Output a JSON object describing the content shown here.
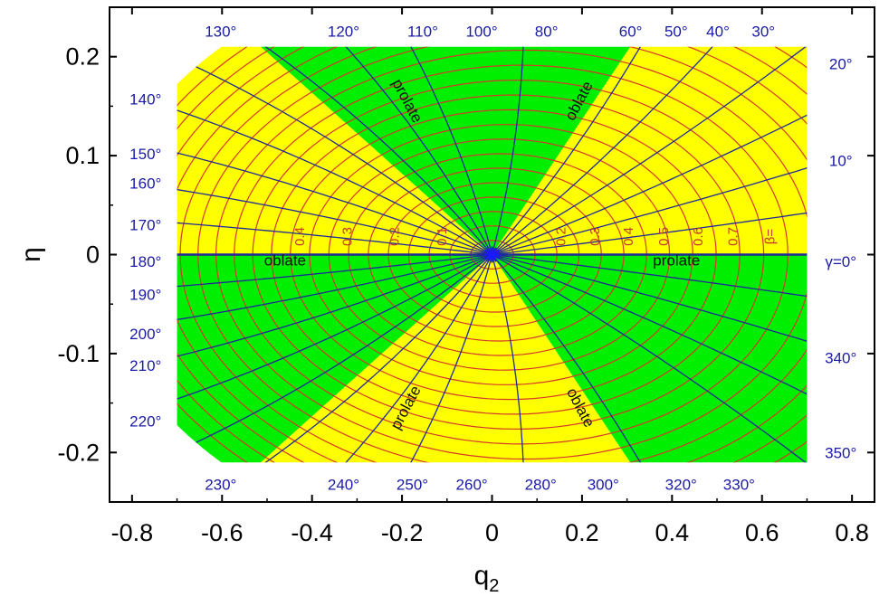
{
  "chart_data": {
    "type": "contour",
    "xlabel": "q",
    "xlabel_sub": "2",
    "ylabel": "η",
    "xlim": [
      -0.85,
      0.85
    ],
    "ylim": [
      -0.25,
      0.25
    ],
    "xticks": [
      -0.8,
      -0.6,
      -0.4,
      -0.2,
      0,
      0.2,
      0.4,
      0.6,
      0.8
    ],
    "xtick_labels": [
      "-0.8",
      "-0.6",
      "-0.4",
      "-0.2",
      "0",
      "0.2",
      "0.4",
      "0.6",
      "0.8"
    ],
    "yticks": [
      0.2,
      0.1,
      0,
      -0.1,
      -0.2
    ],
    "ytick_labels": [
      "0.2",
      "0.1",
      "0",
      "-0.1",
      "-0.2"
    ],
    "data_region": {
      "x": [
        -0.7,
        0.7
      ],
      "y": [
        -0.21,
        0.21
      ]
    },
    "colors": {
      "yellow": "#ffff00",
      "green": "#00ee00",
      "beta_lines": "#d43a2a",
      "gamma_lines": "#1f2a99",
      "gamma_text": "#1a1aa8",
      "beta_text": "#c0392b"
    },
    "regions": [
      {
        "from": 0,
        "to": 60,
        "shape": "prolate",
        "color": "yellow"
      },
      {
        "from": 60,
        "to": 120,
        "shape": "oblate",
        "color": "green"
      },
      {
        "from": 120,
        "to": 180,
        "shape": "prolate",
        "color": "yellow"
      },
      {
        "from": 180,
        "to": 240,
        "shape": "oblate",
        "color": "green"
      },
      {
        "from": 240,
        "to": 300,
        "shape": "prolate",
        "color": "yellow"
      },
      {
        "from": 300,
        "to": 360,
        "shape": "oblate",
        "color": "green"
      }
    ],
    "region_labels": [
      {
        "text": "oblate",
        "x": -0.46,
        "y": -0.007,
        "angle": 0
      },
      {
        "text": "prolate",
        "x": 0.41,
        "y": -0.007,
        "angle": 0
      },
      {
        "text": "prolate",
        "x": -0.19,
        "y": 0.155,
        "angle": 62
      },
      {
        "text": "oblate",
        "x": 0.195,
        "y": 0.155,
        "angle": -62
      },
      {
        "text": "prolate",
        "x": -0.19,
        "y": -0.155,
        "angle": -62
      },
      {
        "text": "oblate",
        "x": 0.195,
        "y": -0.155,
        "angle": 62
      }
    ],
    "beta_values": [
      0.05,
      0.1,
      0.15,
      0.2,
      0.25,
      0.3,
      0.35,
      0.4,
      0.45,
      0.5,
      0.55,
      0.6,
      0.65,
      0.7,
      0.75,
      0.8,
      0.85,
      0.9,
      0.95,
      1.0
    ],
    "gamma_values": [
      0,
      10,
      20,
      30,
      40,
      50,
      60,
      80,
      100,
      110,
      120,
      130,
      140,
      150,
      160,
      170,
      180,
      190,
      200,
      210,
      220,
      230,
      240,
      250,
      260,
      280,
      300,
      320,
      330,
      340,
      350
    ],
    "beta_labels": [
      {
        "text": "0.1",
        "x": -0.11
      },
      {
        "text": "0.2",
        "x": -0.215
      },
      {
        "text": "0.3",
        "x": -0.32
      },
      {
        "text": "0.4",
        "x": -0.425
      },
      {
        "text": "0.2",
        "x": 0.155
      },
      {
        "text": "0.3",
        "x": 0.23
      },
      {
        "text": "0.4",
        "x": 0.305
      },
      {
        "text": "0.5",
        "x": 0.383
      },
      {
        "text": "0.6",
        "x": 0.46
      },
      {
        "text": "0.7",
        "x": 0.537
      },
      {
        "text": "β=",
        "x": 0.62
      }
    ],
    "gamma_labels": [
      {
        "text": "130°",
        "x": -0.603,
        "y": 0.226
      },
      {
        "text": "120°",
        "x": -0.33,
        "y": 0.226
      },
      {
        "text": "110°",
        "x": -0.154,
        "y": 0.226
      },
      {
        "text": "100°",
        "x": -0.023,
        "y": 0.226
      },
      {
        "text": "80°",
        "x": 0.121,
        "y": 0.226
      },
      {
        "text": "60°",
        "x": 0.308,
        "y": 0.226
      },
      {
        "text": "50°",
        "x": 0.409,
        "y": 0.226
      },
      {
        "text": "40°",
        "x": 0.502,
        "y": 0.226
      },
      {
        "text": "30°",
        "x": 0.603,
        "y": 0.226
      },
      {
        "text": "20°",
        "x": 0.775,
        "y": 0.193
      },
      {
        "text": "10°",
        "x": 0.775,
        "y": 0.095
      },
      {
        "text": "γ=0°",
        "x": 0.775,
        "y": -0.007
      },
      {
        "text": "340°",
        "x": 0.775,
        "y": -0.104
      },
      {
        "text": "350°",
        "x": 0.775,
        "y": -0.2
      },
      {
        "text": "140°",
        "x": -0.77,
        "y": 0.157
      },
      {
        "text": "150°",
        "x": -0.77,
        "y": 0.102
      },
      {
        "text": "160°",
        "x": -0.77,
        "y": 0.072
      },
      {
        "text": "170°",
        "x": -0.77,
        "y": 0.03
      },
      {
        "text": "180°",
        "x": -0.77,
        "y": -0.007
      },
      {
        "text": "190°",
        "x": -0.77,
        "y": -0.04
      },
      {
        "text": "200°",
        "x": -0.77,
        "y": -0.08
      },
      {
        "text": "210°",
        "x": -0.77,
        "y": -0.112
      },
      {
        "text": "220°",
        "x": -0.77,
        "y": -0.168
      },
      {
        "text": "230°",
        "x": -0.603,
        "y": -0.232
      },
      {
        "text": "240°",
        "x": -0.33,
        "y": -0.232
      },
      {
        "text": "250°",
        "x": -0.177,
        "y": -0.232
      },
      {
        "text": "260°",
        "x": -0.045,
        "y": -0.232
      },
      {
        "text": "280°",
        "x": 0.108,
        "y": -0.232
      },
      {
        "text": "300°",
        "x": 0.247,
        "y": -0.232
      },
      {
        "text": "320°",
        "x": 0.42,
        "y": -0.232
      },
      {
        "text": "330°",
        "x": 0.549,
        "y": -0.232
      }
    ]
  }
}
